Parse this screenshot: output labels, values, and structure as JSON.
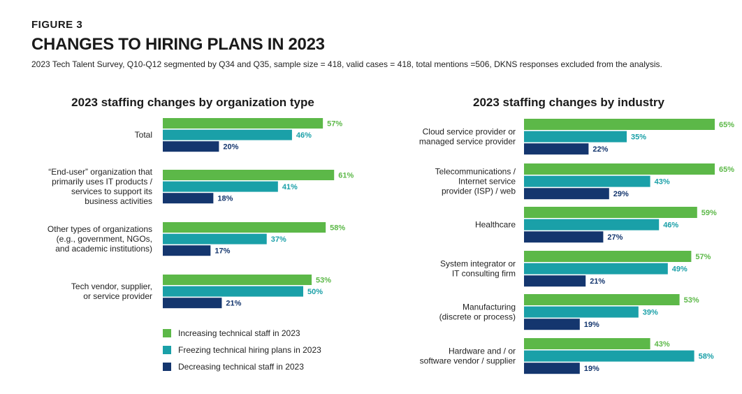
{
  "figure": {
    "label": "FIGURE 3",
    "title": "CHANGES TO HIRING PLANS IN 2023",
    "subtitle": "2023 Tech Talent Survey, Q10-Q12 segmented by Q34 and Q35, sample size = 418, valid cases = 418, total mentions =506, DKNS responses excluded from the analysis."
  },
  "colors": {
    "increasing": "#5cb848",
    "freezing": "#1aa0a8",
    "decreasing": "#14366e"
  },
  "legend": [
    {
      "key": "increasing",
      "label": "Increasing technical staff in 2023"
    },
    {
      "key": "freezing",
      "label": "Freezing technical hiring plans in 2023"
    },
    {
      "key": "decreasing",
      "label": "Decreasing technical staff in 2023"
    }
  ],
  "chart_data": [
    {
      "type": "bar",
      "orientation": "horizontal",
      "title": "2023 staffing changes by organization type",
      "value_unit": "%",
      "xlim": [
        0,
        65
      ],
      "categories": [
        [
          "Total"
        ],
        [
          "“End-user” organization that",
          "primarily uses IT products /",
          "services to support its",
          "business activities"
        ],
        [
          "Other types of organizations",
          "(e.g., government, NGOs,",
          "and academic institutions)"
        ],
        [
          "Tech vendor, supplier,",
          "or service provider"
        ]
      ],
      "series": [
        {
          "name": "Increasing technical staff in 2023",
          "key": "increasing",
          "values": [
            57,
            61,
            58,
            53
          ]
        },
        {
          "name": "Freezing technical hiring plans in 2023",
          "key": "freezing",
          "values": [
            46,
            41,
            37,
            50
          ]
        },
        {
          "name": "Decreasing technical staff in 2023",
          "key": "decreasing",
          "values": [
            20,
            18,
            17,
            21
          ]
        }
      ]
    },
    {
      "type": "bar",
      "orientation": "horizontal",
      "title": "2023 staffing changes by industry",
      "value_unit": "%",
      "xlim": [
        0,
        65
      ],
      "categories": [
        [
          "Cloud service provider or",
          "managed service provider"
        ],
        [
          "Telecommunications /",
          "Internet service",
          "provider (ISP) / web"
        ],
        [
          "Healthcare"
        ],
        [
          "System integrator or",
          "IT consulting firm"
        ],
        [
          "Manufacturing",
          "(discrete or process)"
        ],
        [
          "Hardware and / or",
          "software vendor / supplier"
        ]
      ],
      "series": [
        {
          "name": "Increasing technical staff in 2023",
          "key": "increasing",
          "values": [
            65,
            65,
            59,
            57,
            53,
            43
          ]
        },
        {
          "name": "Freezing technical hiring plans in 2023",
          "key": "freezing",
          "values": [
            35,
            43,
            46,
            49,
            39,
            58
          ]
        },
        {
          "name": "Decreasing technical staff in 2023",
          "key": "decreasing",
          "values": [
            22,
            29,
            27,
            21,
            19,
            19
          ]
        }
      ]
    }
  ]
}
